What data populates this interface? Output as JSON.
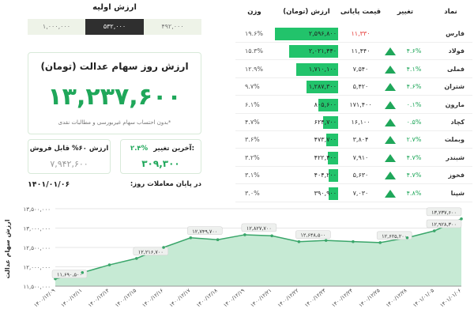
{
  "initial_value": {
    "title": "ارزش اولیه",
    "options": [
      "۱,۰۰۰,۰۰۰",
      "۵۳۲,۰۰۰",
      "۴۹۲,۰۰۰"
    ]
  },
  "summary": {
    "title": "ارزش روز سهام عدالت (تومان)",
    "value": "۱۳,۲۳۷,۶۰۰",
    "note": "*بدون احتساب سهام غیربورسی و مطالبات نقدی"
  },
  "sellable": {
    "title": "ارزش ۶۰% قابل فروش",
    "value": "۷,۹۴۲,۶۰۰"
  },
  "last_change": {
    "title": "آخرین تغییر:",
    "percent": "۲.۴%",
    "value": "۳۰۹,۳۰۰"
  },
  "date": {
    "label": "در پایان معاملات روز:",
    "value": "۱۴۰۱/۰۱/۰۶"
  },
  "table": {
    "headers": [
      "نماد",
      "تغییر",
      "قیمت پایانی",
      "ارزش (تومان)",
      "وزن"
    ],
    "bar_color": "#22c36b",
    "rows": [
      {
        "symbol": "فارس",
        "change": null,
        "price": "۱۱,۳۳۰",
        "price_color": "#e53935",
        "value": 2596800,
        "value_label": "۲,۵۹۶,۸۰۰",
        "weight": "۱۹.۶%"
      },
      {
        "symbol": "فولاد",
        "change": "۴.۶%",
        "price": "۱۱,۴۴۰",
        "value": 2021440,
        "value_label": "۲,۰۲۱,۴۴۰",
        "weight": "۱۵.۳%"
      },
      {
        "symbol": "فملی",
        "change": "۴.۱%",
        "price": "۷,۵۴۰",
        "value": 1710100,
        "value_label": "۱,۷۱۰,۱۰۰",
        "weight": "۱۲.۹%"
      },
      {
        "symbol": "شتران",
        "change": "۴.۶%",
        "price": "۵,۴۲۰",
        "value": 1287300,
        "value_label": "۱,۲۸۷,۳۰۰",
        "weight": "۹.۷%"
      },
      {
        "symbol": "مارون",
        "change": "۰.۱%",
        "price": "۱۷۱,۴۰۰",
        "value": 805600,
        "value_label": "۸۰۵,۶۰۰",
        "weight": "۶.۱%"
      },
      {
        "symbol": "کچاد",
        "change": "۰.۵%",
        "price": "۱۶,۱۰۰",
        "value": 624700,
        "value_label": "۶۲۴,۷۰۰",
        "weight": "۴.۷%"
      },
      {
        "symbol": "وبملت",
        "change": "۲.۷%",
        "price": "۳,۸۰۴",
        "value": 473700,
        "value_label": "۴۷۳,۷۰۰",
        "weight": "۳.۶%"
      },
      {
        "symbol": "شبندر",
        "change": "۴.۷%",
        "price": "۷,۹۱۰",
        "value": 422400,
        "value_label": "۴۲۲,۴۰۰",
        "weight": "۳.۲%"
      },
      {
        "symbol": "فخوز",
        "change": "۴.۷%",
        "price": "۵,۶۳۰",
        "value": 404200,
        "value_label": "۴۰۴,۲۰۰",
        "weight": "۳.۱%"
      },
      {
        "symbol": "شپنا",
        "change": "۴.۸%",
        "price": "۷,۰۳۰",
        "value": 390900,
        "value_label": "۳۹۰,۹۰۰",
        "weight": "۳.۰%"
      }
    ]
  },
  "chart_data": {
    "type": "area",
    "y_label": "ارزش سهام عدالت",
    "color": "#3aa66a",
    "fill": "#c6ead4",
    "grid": true,
    "categories": [
      "۱۴۰۰/۱۲/۰۹",
      "۱۴۰۰/۱۲/۱۱",
      "۱۴۰۰/۱۲/۱۴",
      "۱۴۰۰/۱۲/۱۵",
      "۱۴۰۰/۱۲/۱۶",
      "۱۴۰۰/۱۲/۱۷",
      "۱۴۰۰/۱۲/۱۸",
      "۱۴۰۰/۱۲/۱۹",
      "۱۴۰۰/۱۲/۲۱",
      "۱۴۰۰/۱۲/۲۲",
      "۱۴۰۰/۱۲/۲۳",
      "۱۴۰۰/۱۲/۲۴",
      "۱۴۰۰/۱۲/۲۵",
      "۱۴۰۰/۱۲/۲۸",
      "۱۴۰۱/۰۱/۰۵",
      "۱۴۰۱/۰۱/۰۶"
    ],
    "values": [
      11690500,
      11850000,
      12050000,
      12216700,
      12500000,
      12749700,
      12700000,
      12827700,
      12800000,
      12648500,
      12680000,
      12650000,
      12625200,
      12750000,
      12928300,
      13237600
    ],
    "value_labels": [
      "۱۱,۶۹۰,۵۰۰",
      null,
      null,
      "۱۲,۲۱۶,۷۰۰",
      null,
      "۱۲,۷۴۹,۷۰۰",
      null,
      "۱۲,۸۲۷,۷۰۰",
      null,
      "۱۲,۶۴۸,۵۰۰",
      null,
      null,
      "۱۲,۶۲۵,۲۰۰",
      null,
      "۱۲,۹۲۸,۳۰۰",
      "۱۳,۲۳۷,۶۰۰"
    ],
    "ylim": [
      11500000,
      13500000
    ],
    "yticks": [
      {
        "value": 11500000,
        "label": "۱۱,۵۰۰,۰۰۰"
      },
      {
        "value": 12000000,
        "label": "۱۲,۰۰۰,۰۰۰"
      },
      {
        "value": 12500000,
        "label": "۱۲,۵۰۰,۰۰۰"
      },
      {
        "value": 13000000,
        "label": "۱۳,۰۰۰,۰۰۰"
      },
      {
        "value": 13500000,
        "label": "۱۳,۵۰۰,۰۰۰"
      }
    ]
  }
}
